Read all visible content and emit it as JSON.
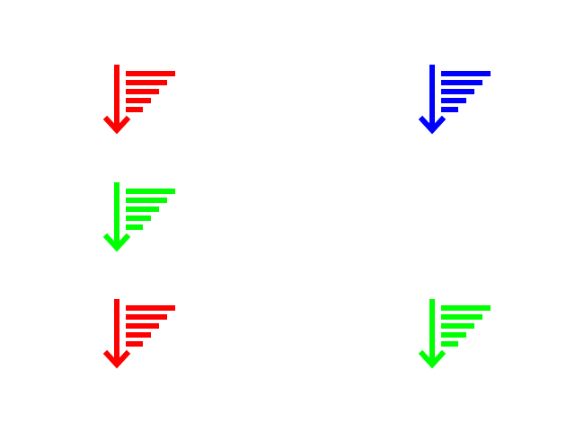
{
  "icons": [
    {
      "name": "sort-descending-icon",
      "color": "#ff0000"
    },
    {
      "name": "sort-descending-icon",
      "color": "#0000ff"
    },
    {
      "name": "sort-descending-icon",
      "color": "#00ff00"
    },
    {
      "name": "sort-descending-icon",
      "color": "#ff0000"
    },
    {
      "name": "sort-descending-icon",
      "color": "#00ff00"
    }
  ]
}
